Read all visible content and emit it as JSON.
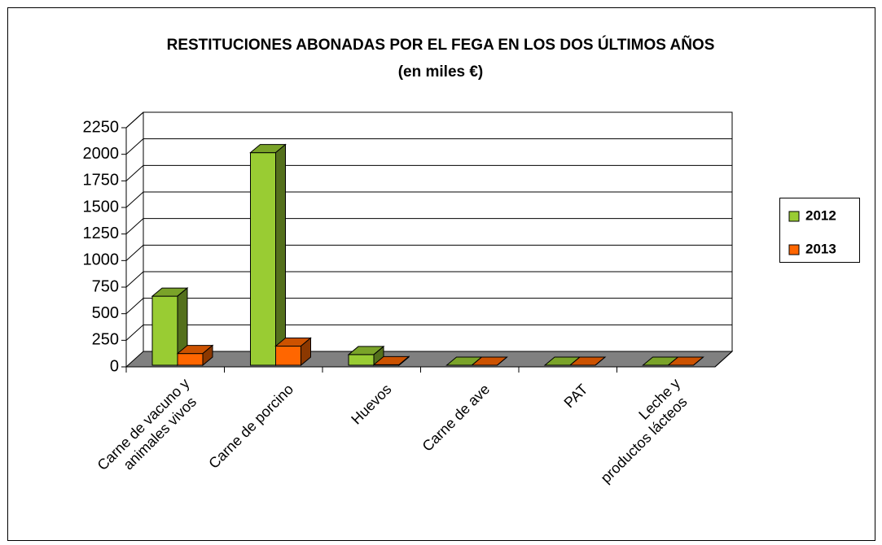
{
  "chart_data": {
    "type": "bar3d",
    "title": "RESTITUCIONES ABONADAS POR EL FEGA EN LOS DOS ÚLTIMOS AÑOS",
    "subtitle": "(en miles €)",
    "categories": [
      "Carne de vacuno y animales vivos",
      "Carne de porcino",
      "Huevos",
      "Carne de ave",
      "PAT",
      "Leche y productos lácteos"
    ],
    "series": [
      {
        "name": "2012",
        "color": "#99cc33",
        "values": [
          650,
          2000,
          100,
          0,
          0,
          0
        ]
      },
      {
        "name": "2013",
        "color": "#ff6600",
        "values": [
          110,
          180,
          5,
          0,
          0,
          0
        ]
      }
    ],
    "ylim": [
      0,
      2250
    ],
    "yticks": [
      0,
      250,
      500,
      750,
      1000,
      1250,
      1500,
      1750,
      2000,
      2250
    ],
    "grid": true,
    "legend": "right"
  }
}
